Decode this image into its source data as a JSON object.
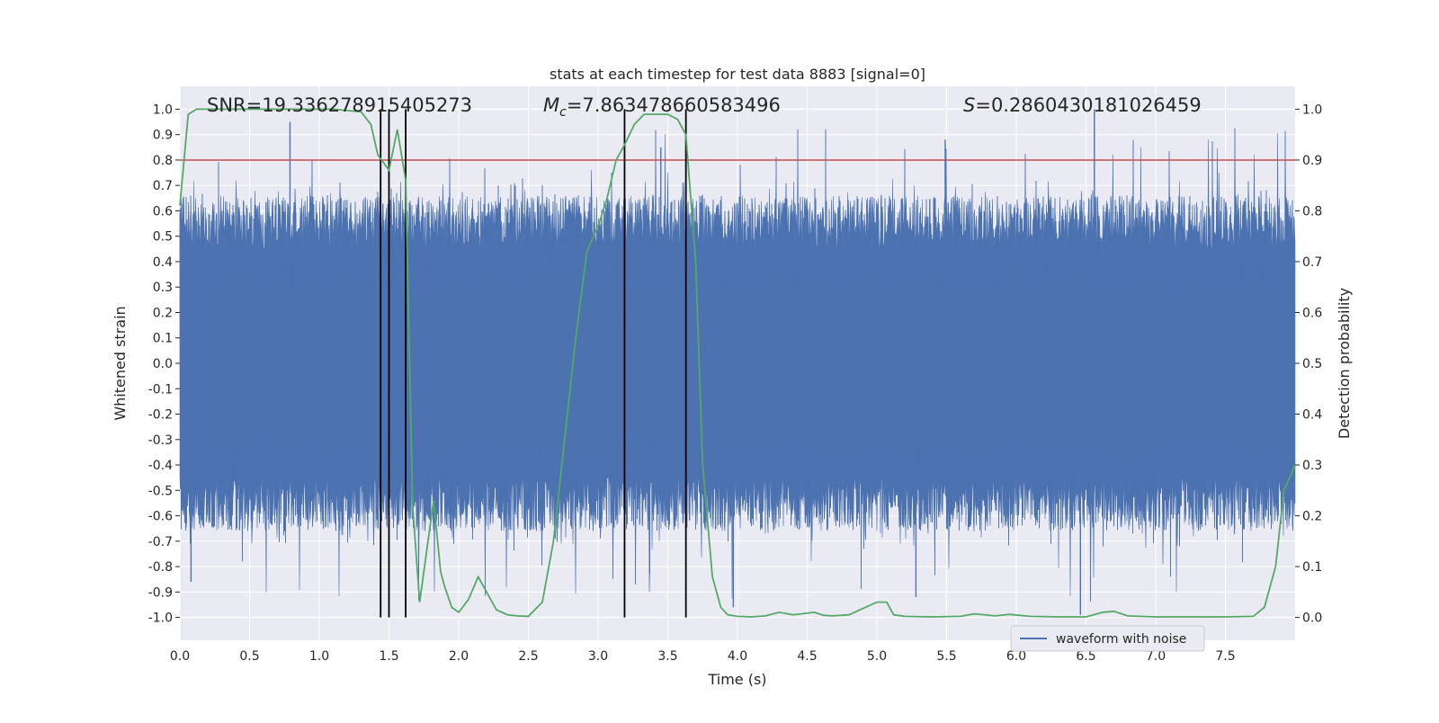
{
  "chart_data": {
    "type": "line",
    "title": "stats at each timestep for test data 8883 [signal=0]",
    "xlabel": "Time (s)",
    "ylabel_left": "Whitened strain",
    "ylabel_right": "Detection probability",
    "xlim": [
      0.0,
      8.0
    ],
    "ylim_left": [
      -1.09,
      1.09
    ],
    "ylim_right": [
      -0.045,
      1.045
    ],
    "grid": true,
    "legend_position": "lower-right",
    "x_ticks": [
      "0.0",
      "0.5",
      "1.0",
      "1.5",
      "2.0",
      "2.5",
      "3.0",
      "3.5",
      "4.0",
      "4.5",
      "5.0",
      "5.5",
      "6.0",
      "6.5",
      "7.0",
      "7.5"
    ],
    "y_ticks_left": [
      "-1.0",
      "-0.9",
      "-0.8",
      "-0.7",
      "-0.6",
      "-0.5",
      "-0.4",
      "-0.3",
      "-0.2",
      "-0.1",
      "0.0",
      "0.1",
      "0.2",
      "0.3",
      "0.4",
      "0.5",
      "0.6",
      "0.7",
      "0.8",
      "0.9",
      "1.0"
    ],
    "y_ticks_right": [
      "0.0",
      "0.1",
      "0.2",
      "0.3",
      "0.4",
      "0.5",
      "0.6",
      "0.7",
      "0.8",
      "0.9",
      "1.0"
    ],
    "annotations": {
      "snr": "SNR=19.336278915405273",
      "mc_symbol": "M",
      "mc_sub": "c",
      "mc_value": "=7.863478660583496",
      "s_symbol": "S",
      "s_value": "=0.2860430181026459"
    },
    "threshold": {
      "value": 0.8,
      "color": "#c44e52"
    },
    "vertical_lines_x": [
      1.44,
      1.5,
      1.62,
      3.19,
      3.63
    ],
    "series": [
      {
        "name": "waveform with noise",
        "color": "#4c72b0",
        "typical_range": [
          -0.4,
          0.4
        ],
        "peak_max": 1.0,
        "peak_min": -0.99
      },
      {
        "color": "#55a868",
        "axis": "right",
        "x": [
          0.0,
          0.06,
          0.12,
          0.2,
          0.35,
          0.5,
          0.7,
          0.9,
          1.1,
          1.3,
          1.37,
          1.42,
          1.5,
          1.56,
          1.62,
          1.67,
          1.72,
          1.82,
          1.87,
          1.9,
          1.95,
          2.0,
          2.07,
          2.14,
          2.2,
          2.27,
          2.35,
          2.42,
          2.5,
          2.6,
          2.68,
          2.76,
          2.84,
          2.92,
          3.0,
          3.06,
          3.13,
          3.19,
          3.26,
          3.33,
          3.42,
          3.5,
          3.57,
          3.63,
          3.7,
          3.75,
          3.82,
          3.88,
          3.93,
          4.0,
          4.1,
          4.2,
          4.3,
          4.4,
          4.55,
          4.62,
          4.68,
          4.8,
          5.0,
          5.07,
          5.12,
          5.2,
          5.4,
          5.6,
          5.7,
          5.85,
          5.95,
          6.1,
          6.3,
          6.5,
          6.62,
          6.7,
          6.8,
          7.0,
          7.2,
          7.5,
          7.7,
          7.78,
          7.86,
          7.92,
          7.97,
          8.0
        ],
        "y": [
          0.81,
          0.99,
          1.0,
          1.0,
          1.0,
          1.0,
          1.0,
          1.0,
          1.0,
          0.995,
          0.97,
          0.91,
          0.88,
          0.96,
          0.86,
          0.22,
          0.03,
          0.23,
          0.09,
          0.06,
          0.02,
          0.01,
          0.035,
          0.08,
          0.05,
          0.015,
          0.005,
          0.003,
          0.002,
          0.03,
          0.15,
          0.35,
          0.55,
          0.72,
          0.77,
          0.82,
          0.9,
          0.93,
          0.97,
          0.99,
          0.99,
          0.99,
          0.98,
          0.95,
          0.7,
          0.3,
          0.08,
          0.02,
          0.005,
          0.002,
          0.001,
          0.003,
          0.01,
          0.005,
          0.01,
          0.004,
          0.003,
          0.005,
          0.03,
          0.03,
          0.005,
          0.002,
          0.001,
          0.002,
          0.007,
          0.003,
          0.006,
          0.002,
          0.001,
          0.001,
          0.01,
          0.012,
          0.003,
          0.001,
          0.001,
          0.001,
          0.002,
          0.02,
          0.1,
          0.25,
          0.28,
          0.3
        ]
      }
    ]
  }
}
